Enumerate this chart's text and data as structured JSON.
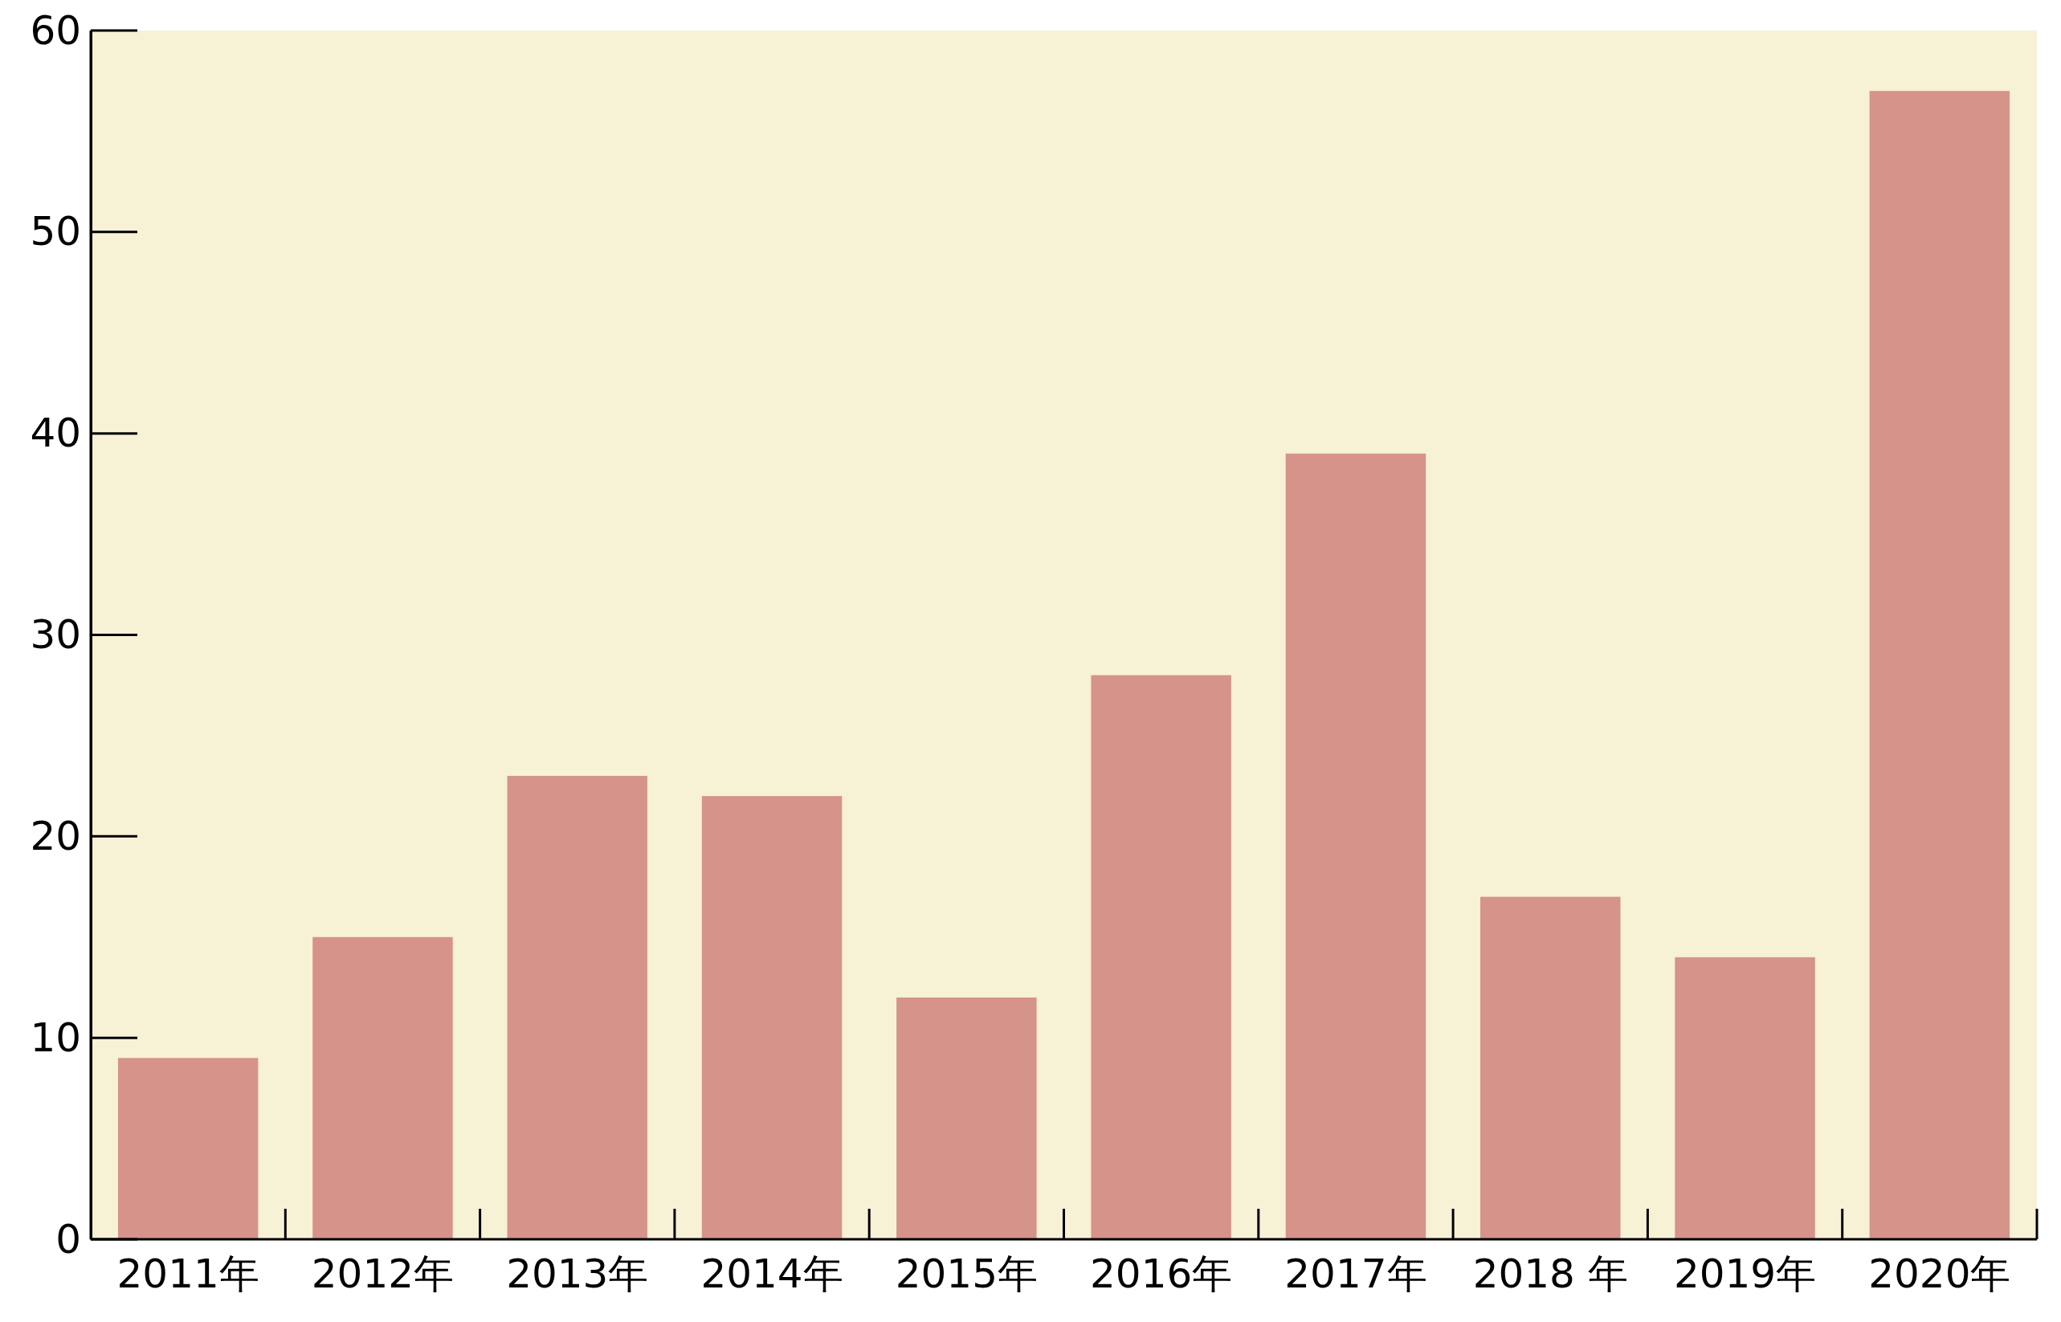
{
  "chart_data": {
    "type": "bar",
    "categories": [
      "2011年",
      "2012年",
      "2013年",
      "2014年",
      "2015年",
      "2016年",
      "2017年",
      "2018 年",
      "2019年",
      "2020年"
    ],
    "values": [
      9,
      15,
      23,
      22,
      12,
      28,
      39,
      17,
      14,
      57
    ],
    "color": "#d6938a",
    "ylim": [
      0,
      60
    ],
    "yticks": [
      0,
      10,
      20,
      30,
      40,
      50,
      60
    ],
    "grid": false
  }
}
